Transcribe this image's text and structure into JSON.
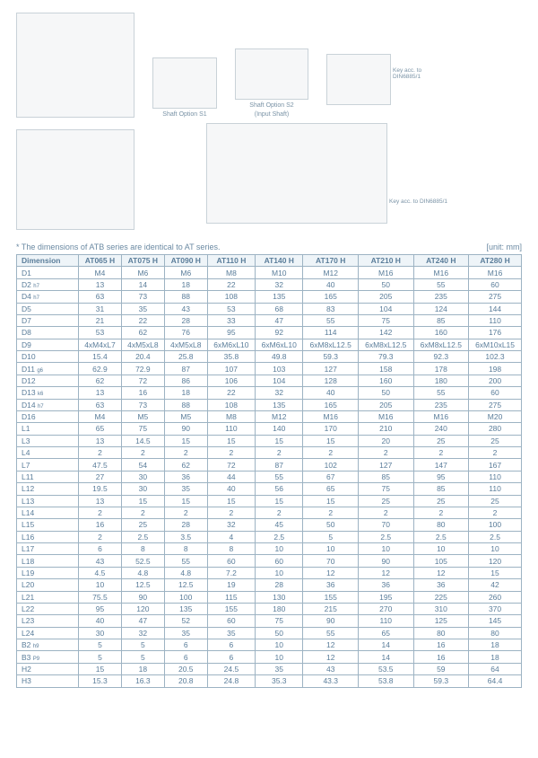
{
  "drawings": {
    "shaft_s1": "Shaft Option S1",
    "shaft_s2": "Shaft Option S2",
    "input_shaft": "(Input Shaft)",
    "key1": "Key acc. to DIN6885/1",
    "key2": "Key acc. to DIN6885/1"
  },
  "note": "* The dimensions of ATB series are identical to AT series.",
  "unit": "[unit: mm]",
  "dim_header": "Dimension",
  "models": [
    "AT065 H",
    "AT075 H",
    "AT090 H",
    "AT110 H",
    "AT140 H",
    "AT170 H",
    "AT210 H",
    "AT240 H",
    "AT280 H"
  ],
  "rows": [
    {
      "l": "D1",
      "s": "",
      "v": [
        "M4",
        "M6",
        "M6",
        "M8",
        "M10",
        "M12",
        "M16",
        "M16",
        "M16"
      ]
    },
    {
      "l": "D2",
      "s": "h7",
      "v": [
        "13",
        "14",
        "18",
        "22",
        "32",
        "40",
        "50",
        "55",
        "60"
      ]
    },
    {
      "l": "D4",
      "s": "h7",
      "v": [
        "63",
        "73",
        "88",
        "108",
        "135",
        "165",
        "205",
        "235",
        "275"
      ]
    },
    {
      "l": "D5",
      "s": "",
      "v": [
        "31",
        "35",
        "43",
        "53",
        "68",
        "83",
        "104",
        "124",
        "144"
      ]
    },
    {
      "l": "D7",
      "s": "",
      "v": [
        "21",
        "22",
        "28",
        "33",
        "47",
        "55",
        "75",
        "85",
        "110"
      ]
    },
    {
      "l": "D8",
      "s": "",
      "v": [
        "53",
        "62",
        "76",
        "95",
        "92",
        "114",
        "142",
        "160",
        "176"
      ]
    },
    {
      "l": "D9",
      "s": "",
      "v": [
        "4xM4xL7",
        "4xM5xL8",
        "4xM5xL8",
        "6xM6xL10",
        "6xM6xL10",
        "6xM8xL12.5",
        "6xM8xL12.5",
        "6xM8xL12.5",
        "6xM10xL15"
      ]
    },
    {
      "l": "D10",
      "s": "",
      "v": [
        "15.4",
        "20.4",
        "25.8",
        "35.8",
        "49.8",
        "59.3",
        "79.3",
        "92.3",
        "102.3"
      ]
    },
    {
      "l": "D11",
      "s": "g6",
      "v": [
        "62.9",
        "72.9",
        "87",
        "107",
        "103",
        "127",
        "158",
        "178",
        "198"
      ]
    },
    {
      "l": "D12",
      "s": "",
      "v": [
        "62",
        "72",
        "86",
        "106",
        "104",
        "128",
        "160",
        "180",
        "200"
      ]
    },
    {
      "l": "D13",
      "s": "k6",
      "v": [
        "13",
        "16",
        "18",
        "22",
        "32",
        "40",
        "50",
        "55",
        "60"
      ]
    },
    {
      "l": "D14",
      "s": "h7",
      "v": [
        "63",
        "73",
        "88",
        "108",
        "135",
        "165",
        "205",
        "235",
        "275"
      ]
    },
    {
      "l": "D16",
      "s": "",
      "v": [
        "M4",
        "M5",
        "M5",
        "M8",
        "M12",
        "M16",
        "M16",
        "M16",
        "M20"
      ]
    },
    {
      "l": "L1",
      "s": "",
      "v": [
        "65",
        "75",
        "90",
        "110",
        "140",
        "170",
        "210",
        "240",
        "280"
      ]
    },
    {
      "l": "L3",
      "s": "",
      "v": [
        "13",
        "14.5",
        "15",
        "15",
        "15",
        "15",
        "20",
        "25",
        "25"
      ]
    },
    {
      "l": "L4",
      "s": "",
      "v": [
        "2",
        "2",
        "2",
        "2",
        "2",
        "2",
        "2",
        "2",
        "2"
      ]
    },
    {
      "l": "L7",
      "s": "",
      "v": [
        "47.5",
        "54",
        "62",
        "72",
        "87",
        "102",
        "127",
        "147",
        "167"
      ]
    },
    {
      "l": "L11",
      "s": "",
      "v": [
        "27",
        "30",
        "36",
        "44",
        "55",
        "67",
        "85",
        "95",
        "110"
      ]
    },
    {
      "l": "L12",
      "s": "",
      "v": [
        "19.5",
        "30",
        "35",
        "40",
        "56",
        "65",
        "75",
        "85",
        "110"
      ]
    },
    {
      "l": "L13",
      "s": "",
      "v": [
        "13",
        "15",
        "15",
        "15",
        "15",
        "15",
        "25",
        "25",
        "25"
      ]
    },
    {
      "l": "L14",
      "s": "",
      "v": [
        "2",
        "2",
        "2",
        "2",
        "2",
        "2",
        "2",
        "2",
        "2"
      ]
    },
    {
      "l": "L15",
      "s": "",
      "v": [
        "16",
        "25",
        "28",
        "32",
        "45",
        "50",
        "70",
        "80",
        "100"
      ]
    },
    {
      "l": "L16",
      "s": "",
      "v": [
        "2",
        "2.5",
        "3.5",
        "4",
        "2.5",
        "5",
        "2.5",
        "2.5",
        "2.5"
      ]
    },
    {
      "l": "L17",
      "s": "",
      "v": [
        "6",
        "8",
        "8",
        "8",
        "10",
        "10",
        "10",
        "10",
        "10"
      ]
    },
    {
      "l": "L18",
      "s": "",
      "v": [
        "43",
        "52.5",
        "55",
        "60",
        "60",
        "70",
        "90",
        "105",
        "120"
      ]
    },
    {
      "l": "L19",
      "s": "",
      "v": [
        "4.5",
        "4.8",
        "4.8",
        "7.2",
        "10",
        "12",
        "12",
        "12",
        "15"
      ]
    },
    {
      "l": "L20",
      "s": "",
      "v": [
        "10",
        "12.5",
        "12.5",
        "19",
        "28",
        "36",
        "36",
        "36",
        "42"
      ]
    },
    {
      "l": "L21",
      "s": "",
      "v": [
        "75.5",
        "90",
        "100",
        "115",
        "130",
        "155",
        "195",
        "225",
        "260"
      ]
    },
    {
      "l": "L22",
      "s": "",
      "v": [
        "95",
        "120",
        "135",
        "155",
        "180",
        "215",
        "270",
        "310",
        "370"
      ]
    },
    {
      "l": "L23",
      "s": "",
      "v": [
        "40",
        "47",
        "52",
        "60",
        "75",
        "90",
        "110",
        "125",
        "145"
      ]
    },
    {
      "l": "L24",
      "s": "",
      "v": [
        "30",
        "32",
        "35",
        "35",
        "50",
        "55",
        "65",
        "80",
        "80"
      ]
    },
    {
      "l": "B2",
      "s": "h9",
      "v": [
        "5",
        "5",
        "6",
        "6",
        "10",
        "12",
        "14",
        "16",
        "18"
      ]
    },
    {
      "l": "B3",
      "s": "P9",
      "v": [
        "5",
        "5",
        "6",
        "6",
        "10",
        "12",
        "14",
        "16",
        "18"
      ]
    },
    {
      "l": "H2",
      "s": "",
      "v": [
        "15",
        "18",
        "20.5",
        "24.5",
        "35",
        "43",
        "53.5",
        "59",
        "64"
      ]
    },
    {
      "l": "H3",
      "s": "",
      "v": [
        "15.3",
        "16.3",
        "20.8",
        "24.8",
        "35.3",
        "43.3",
        "53.8",
        "59.3",
        "64.4"
      ]
    }
  ]
}
